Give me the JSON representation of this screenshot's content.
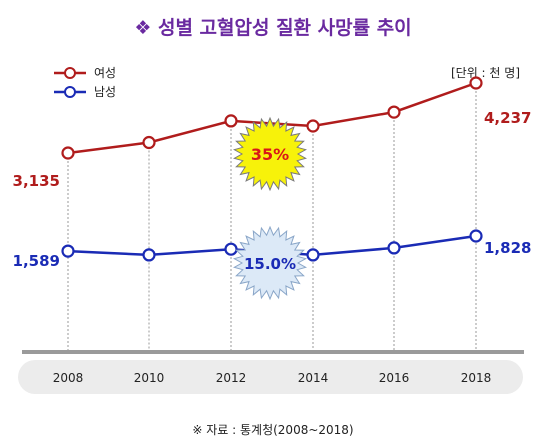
{
  "title": "❖ 성별 고혈압성 질환 사망률 추이",
  "unit": "[단위 : 천 명]",
  "source": "※ 자료 : 통계청(2008~2018)",
  "colors": {
    "female": "#b01c1c",
    "male": "#1a2bb5",
    "title": "#6a2aa0"
  },
  "chart_data": {
    "type": "line",
    "title": "❖ 성별 고혈압성 질환 사망률 추이",
    "x": [
      "2008",
      "2010",
      "2012",
      "2014",
      "2016",
      "2018"
    ],
    "ylim": [
      0,
      4600
    ],
    "grid": "vertical",
    "legend": "top-left",
    "series": [
      {
        "name": "여성",
        "color": "#b01c1c",
        "values": [
          3135,
          3300,
          3640,
          3560,
          3780,
          4237
        ]
      },
      {
        "name": "남성",
        "color": "#1a2bb5",
        "values": [
          1589,
          1530,
          1620,
          1530,
          1640,
          1828
        ]
      }
    ],
    "data_labels": {
      "female_start": "3,135",
      "female_end": "4,237",
      "male_start": "1,589",
      "male_end": "1,828"
    },
    "badges": {
      "female": "35%",
      "male": "15.0%"
    }
  }
}
